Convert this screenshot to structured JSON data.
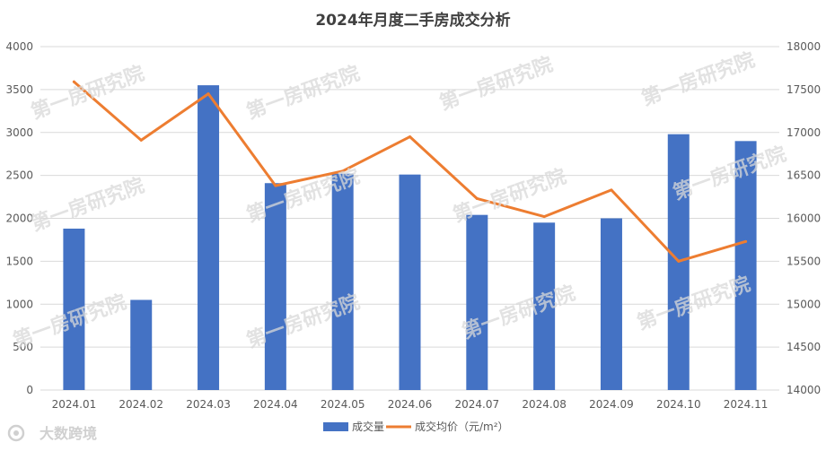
{
  "chart_data": {
    "type": "bar",
    "title": "2024年月度二手房成交分析",
    "categories": [
      "2024.01",
      "2024.02",
      "2024.03",
      "2024.04",
      "2024.05",
      "2024.06",
      "2024.07",
      "2024.08",
      "2024.09",
      "2024.10",
      "2024.11"
    ],
    "series": [
      {
        "name": "成交量",
        "type": "bar",
        "axis": "left",
        "color": "#4472c4",
        "values": [
          1880,
          1050,
          3550,
          2410,
          2520,
          2510,
          2040,
          1950,
          2000,
          2980,
          2900
        ]
      },
      {
        "name": "成交均价（元/m²）",
        "type": "line",
        "axis": "right",
        "color": "#ed7d31",
        "values": [
          17590,
          16910,
          17450,
          16380,
          16550,
          16950,
          16230,
          16020,
          16330,
          15500,
          15730
        ]
      }
    ],
    "y_left": {
      "min": 0,
      "max": 4000,
      "ticks": [
        "0",
        "500",
        "1000",
        "1500",
        "2000",
        "2500",
        "3000",
        "3500",
        "4000"
      ]
    },
    "y_right": {
      "min": 14000,
      "max": 18000,
      "ticks": [
        "14000",
        "14500",
        "15000",
        "15500",
        "16000",
        "16500",
        "17000",
        "17500",
        "18000"
      ]
    },
    "grid": true,
    "legend": "bottom-center"
  },
  "watermark": "第一房研究院",
  "source_label": "大数跨境"
}
